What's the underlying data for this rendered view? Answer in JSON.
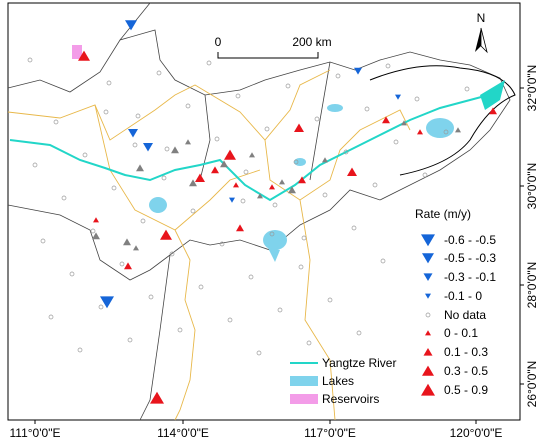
{
  "map": {
    "north_label": "N",
    "scale_bar": {
      "start": "0",
      "end": "200 km"
    },
    "longitude_labels": [
      "111°0'0\"E",
      "114°0'0\"E",
      "117°0'0\"E",
      "120°0'0\"E"
    ],
    "latitude_labels": [
      "32°0'0\"N",
      "30°0'0\"N",
      "28°0'0\"N",
      "26°0'0\"N"
    ],
    "rate_legend": {
      "title": "Rate (m/y)",
      "entries": [
        "-0.6 - -0.5",
        "-0.5 - -0.3",
        "-0.3 - -0.1",
        "-0.1 - 0",
        "No data",
        "0 - 0.1",
        "0.1 - 0.3",
        "0.3 - 0.5",
        "0.5 - 0.9"
      ]
    },
    "feature_legend": [
      "Yangtze River",
      "Lakes",
      "Reservoirs"
    ]
  }
}
